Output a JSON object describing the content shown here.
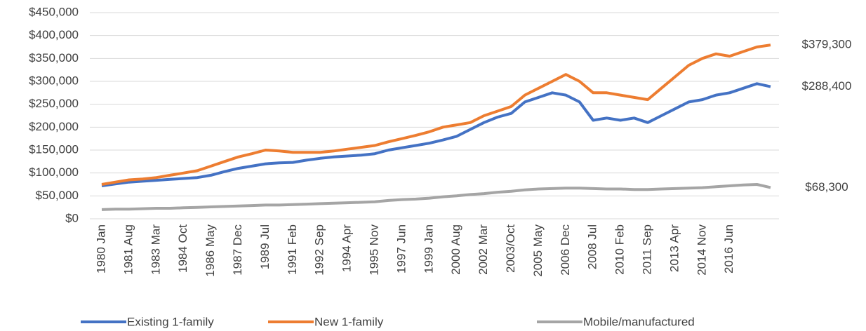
{
  "chart_data": {
    "type": "line",
    "categories": [
      "1980 Jan",
      null,
      "1981 Aug",
      null,
      "1983 Mar",
      null,
      "1984 Oct",
      null,
      "1986 May",
      null,
      "1987 Dec",
      null,
      "1989 Jul",
      null,
      "1991 Feb",
      null,
      "1992 Sep",
      null,
      "1994 Apr",
      null,
      "1995 Nov",
      null,
      "1997 Jun",
      null,
      "1999 Jan",
      null,
      "2000 Aug",
      null,
      "2002 Mar",
      null,
      "2003/Oct",
      null,
      "2005 May",
      null,
      "2006 Dec",
      null,
      "2008 Jul",
      null,
      "2010 Feb",
      null,
      "2011 Sep",
      null,
      "2013 Apr",
      null,
      "2014 Nov",
      null,
      "2016 Jun",
      null,
      null,
      null
    ],
    "series": [
      {
        "name": "Existing 1-family",
        "color": "#4472c4",
        "values": [
          72000,
          76000,
          80000,
          82000,
          84000,
          86000,
          88000,
          90000,
          95000,
          103000,
          110000,
          115000,
          120000,
          122000,
          123000,
          128000,
          132000,
          135000,
          137000,
          139000,
          142000,
          150000,
          155000,
          160000,
          165000,
          172000,
          180000,
          195000,
          210000,
          222000,
          230000,
          255000,
          265000,
          275000,
          270000,
          255000,
          215000,
          220000,
          215000,
          220000,
          210000,
          225000,
          240000,
          255000,
          260000,
          270000,
          275000,
          285000,
          295000,
          288400
        ],
        "value_labels": [
          null,
          null,
          null,
          null,
          null,
          null,
          null,
          null,
          null,
          null,
          null,
          null,
          null,
          null,
          null,
          null,
          null,
          null,
          null,
          null,
          null,
          null,
          null,
          null,
          null,
          null,
          null,
          null,
          null,
          null,
          null,
          null,
          null,
          null,
          null,
          null,
          null,
          null,
          null,
          null,
          null,
          null,
          null,
          null,
          null,
          null,
          null,
          null,
          null,
          "$288,400"
        ]
      },
      {
        "name": "New 1-family",
        "color": "#ed7d31",
        "values": [
          75000,
          80000,
          85000,
          87000,
          90000,
          95000,
          100000,
          105000,
          115000,
          125000,
          135000,
          142000,
          150000,
          148000,
          145000,
          145000,
          145000,
          148000,
          152000,
          156000,
          160000,
          168000,
          175000,
          182000,
          190000,
          200000,
          205000,
          210000,
          225000,
          235000,
          245000,
          270000,
          285000,
          300000,
          315000,
          300000,
          275000,
          275000,
          270000,
          265000,
          260000,
          285000,
          310000,
          335000,
          350000,
          360000,
          355000,
          365000,
          375000,
          379300
        ],
        "value_labels": [
          null,
          null,
          null,
          null,
          null,
          null,
          null,
          null,
          null,
          null,
          null,
          null,
          null,
          null,
          null,
          null,
          null,
          null,
          null,
          null,
          null,
          null,
          null,
          null,
          null,
          null,
          null,
          null,
          null,
          null,
          null,
          null,
          null,
          null,
          null,
          null,
          null,
          null,
          null,
          null,
          null,
          null,
          null,
          null,
          null,
          null,
          null,
          null,
          null,
          "$379,300"
        ]
      },
      {
        "name": "Mobile/manufactured",
        "color": "#a5a5a5",
        "values": [
          20000,
          21000,
          21000,
          22000,
          23000,
          23000,
          24000,
          25000,
          26000,
          27000,
          28000,
          29000,
          30000,
          30000,
          31000,
          32000,
          33000,
          34000,
          35000,
          36000,
          37000,
          40000,
          42000,
          43000,
          45000,
          48000,
          50000,
          53000,
          55000,
          58000,
          60000,
          63000,
          65000,
          66000,
          67000,
          67000,
          66000,
          65000,
          65000,
          64000,
          64000,
          65000,
          66000,
          67000,
          68000,
          70000,
          72000,
          74000,
          75000,
          68300
        ],
        "value_labels": [
          null,
          null,
          null,
          null,
          null,
          null,
          null,
          null,
          null,
          null,
          null,
          null,
          null,
          null,
          null,
          null,
          null,
          null,
          null,
          null,
          null,
          null,
          null,
          null,
          null,
          null,
          null,
          null,
          null,
          null,
          null,
          null,
          null,
          null,
          null,
          null,
          null,
          null,
          null,
          null,
          null,
          null,
          null,
          null,
          null,
          null,
          null,
          null,
          null,
          "$68,300"
        ]
      }
    ],
    "ylim": [
      0,
      450000
    ],
    "yticks": [
      {
        "value": 0,
        "label": "$0"
      },
      {
        "value": 50000,
        "label": "$50,000"
      },
      {
        "value": 100000,
        "label": "$100,000"
      },
      {
        "value": 150000,
        "label": "$150,000"
      },
      {
        "value": 200000,
        "label": "$200,000"
      },
      {
        "value": 250000,
        "label": "$250,000"
      },
      {
        "value": 300000,
        "label": "$300,000"
      },
      {
        "value": 350000,
        "label": "$350,000"
      },
      {
        "value": 400000,
        "label": "$400,000"
      },
      {
        "value": 450000,
        "label": "$450,000"
      }
    ],
    "grid": true,
    "legend": "bottom"
  }
}
